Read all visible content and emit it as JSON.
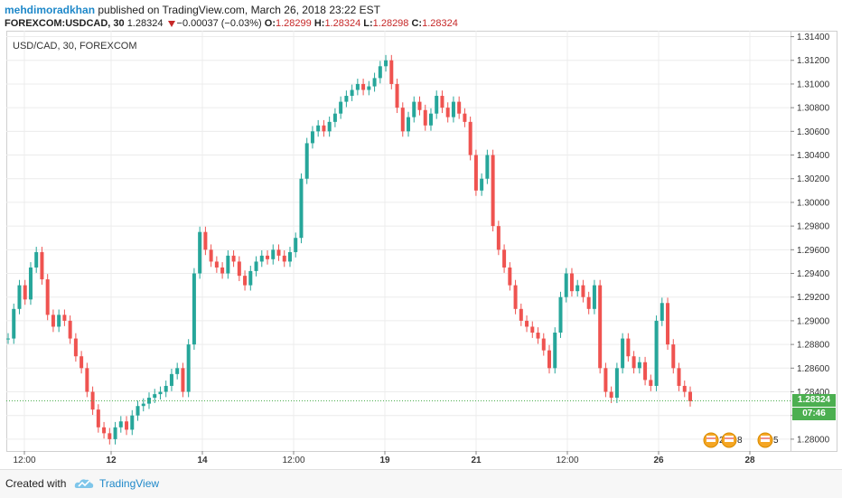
{
  "header": {
    "author": "mehdimoradkhan",
    "published_text": "published on TradingView.com, March 26, 2018 23:22 EST",
    "symbol_full": "FOREXCOM:USDCAD, 30",
    "last": "1.28324",
    "change": "−0.00037 (−0.03%)",
    "o_label": "O:",
    "o_value": "1.28299",
    "h_label": "H:",
    "h_value": "1.28324",
    "l_label": "L:",
    "l_value": "1.28298",
    "c_label": "C:",
    "c_value": "1.28324"
  },
  "chart_label": "USD/CAD, 30, FOREXCOM",
  "price_tag": {
    "price": "1.28324",
    "countdown": "07:46"
  },
  "events": [
    {
      "name": "us-flag-event-icon",
      "count": "2"
    },
    {
      "name": "us-flag-event-icon",
      "count": "8"
    },
    {
      "name": "us-flag-event-icon",
      "count": "5"
    }
  ],
  "footer": {
    "created_with": "Created with",
    "brand": "TradingView"
  },
  "colors": {
    "up": "#26a69a",
    "down": "#ef5350",
    "accent": "#1e88c9",
    "tag": "#4caf50"
  },
  "chart_data": {
    "type": "line",
    "title": "USD/CAD, 30, FOREXCOM",
    "style": "candlestick",
    "xlabel": "",
    "ylabel": "",
    "ylim": [
      1.279,
      1.3145
    ],
    "yticks": [
      "1.31400",
      "1.31200",
      "1.31000",
      "1.30800",
      "1.30600",
      "1.30400",
      "1.30200",
      "1.30000",
      "1.29800",
      "1.29600",
      "1.29400",
      "1.29200",
      "1.29000",
      "1.28800",
      "1.28600",
      "1.28400",
      "1.28200",
      "1.28000"
    ],
    "xticks": [
      "12:00",
      "12",
      "14",
      "12:00",
      "19",
      "21",
      "12:00",
      "26",
      "28"
    ],
    "grid": true,
    "last_price": 1.28324,
    "series": [
      {
        "values": [
          1.2885,
          1.291,
          1.293,
          1.2918,
          1.2945,
          1.2958,
          1.2935,
          1.2905,
          1.2895,
          1.2905,
          1.29,
          1.2885,
          1.287,
          1.286,
          1.284,
          1.2825,
          1.281,
          1.2805,
          1.28,
          1.281,
          1.2815,
          1.2808,
          1.282,
          1.2828,
          1.283,
          1.2835,
          1.2838,
          1.284,
          1.2845,
          1.2855,
          1.286,
          1.284,
          1.288,
          1.294,
          1.2975,
          1.296,
          1.295,
          1.2945,
          1.294,
          1.2955,
          1.295,
          1.2938,
          1.293,
          1.2942,
          1.295,
          1.2955,
          1.2952,
          1.296,
          1.2955,
          1.295,
          1.2958,
          1.297,
          1.302,
          1.305,
          1.306,
          1.3065,
          1.306,
          1.3068,
          1.3075,
          1.3085,
          1.309,
          1.3095,
          1.31,
          1.3095,
          1.3098,
          1.3105,
          1.3115,
          1.312,
          1.31,
          1.308,
          1.306,
          1.3072,
          1.3085,
          1.3078,
          1.3065,
          1.3075,
          1.309,
          1.308,
          1.3072,
          1.3085,
          1.3075,
          1.3068,
          1.304,
          1.301,
          1.302,
          1.304,
          1.298,
          1.296,
          1.2945,
          1.293,
          1.291,
          1.29,
          1.2895,
          1.289,
          1.2885,
          1.2875,
          1.286,
          1.289,
          1.292,
          1.294,
          1.2925,
          1.293,
          1.292,
          1.291,
          1.293,
          1.286,
          1.284,
          1.2835,
          1.286,
          1.2885,
          1.287,
          1.286,
          1.2865,
          1.285,
          1.2845,
          1.29,
          1.2915,
          1.288,
          1.286,
          1.2845,
          1.284,
          1.2832
        ]
      }
    ]
  }
}
